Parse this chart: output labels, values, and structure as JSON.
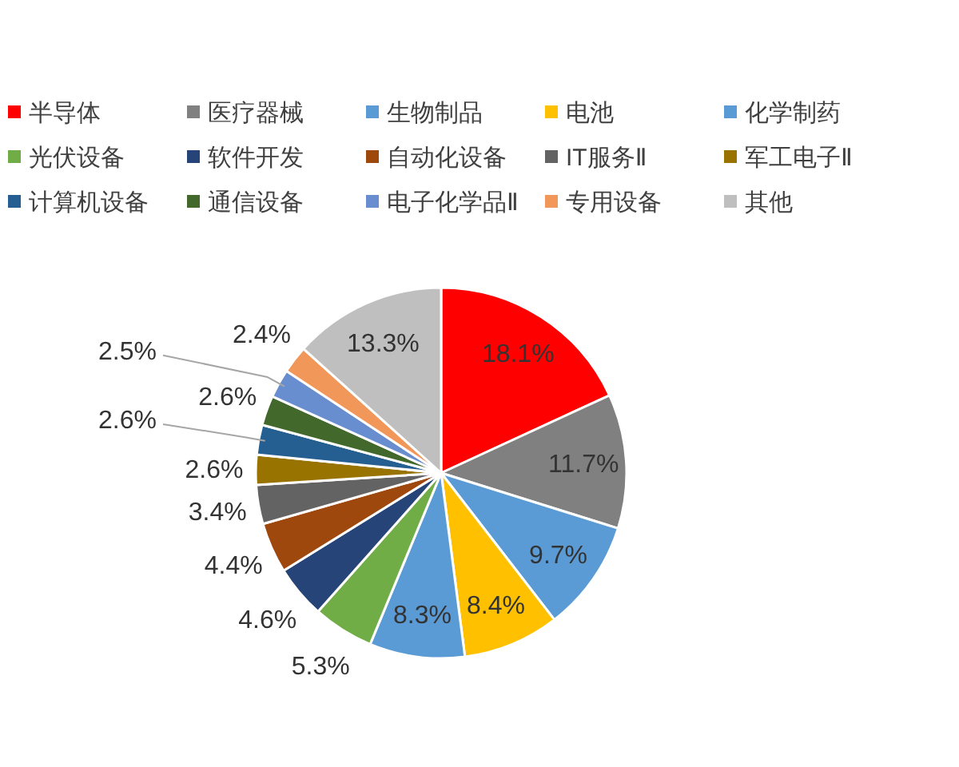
{
  "chart_data": {
    "type": "pie",
    "categories": [
      "半导体",
      "医疗器械",
      "生物制品",
      "电池",
      "化学制药",
      "光伏设备",
      "软件开发",
      "自动化设备",
      "IT服务Ⅱ",
      "军工电子Ⅱ",
      "计算机设备",
      "通信设备",
      "电子化学品Ⅱ",
      "专用设备",
      "其他"
    ],
    "values": [
      18.1,
      11.7,
      9.7,
      8.4,
      8.3,
      5.3,
      4.6,
      4.4,
      3.4,
      2.6,
      2.6,
      2.6,
      2.5,
      2.4,
      13.3
    ],
    "colors": [
      "#ff0000",
      "#808080",
      "#5b9bd5",
      "#ffc000",
      "#5b9bd5",
      "#70ad47",
      "#264478",
      "#9e480e",
      "#636363",
      "#997300",
      "#255e91",
      "#43682b",
      "#698ed0",
      "#f1975a",
      "#bfbfbf"
    ],
    "value_labels": [
      "18.1%",
      "11.7%",
      "9.7%",
      "8.4%",
      "8.3%",
      "5.3%",
      "4.6%",
      "4.4%",
      "3.4%",
      "2.6%",
      "2.6%",
      "2.6%",
      "2.5%",
      "2.4%",
      "13.3%"
    ],
    "legend": "top"
  }
}
